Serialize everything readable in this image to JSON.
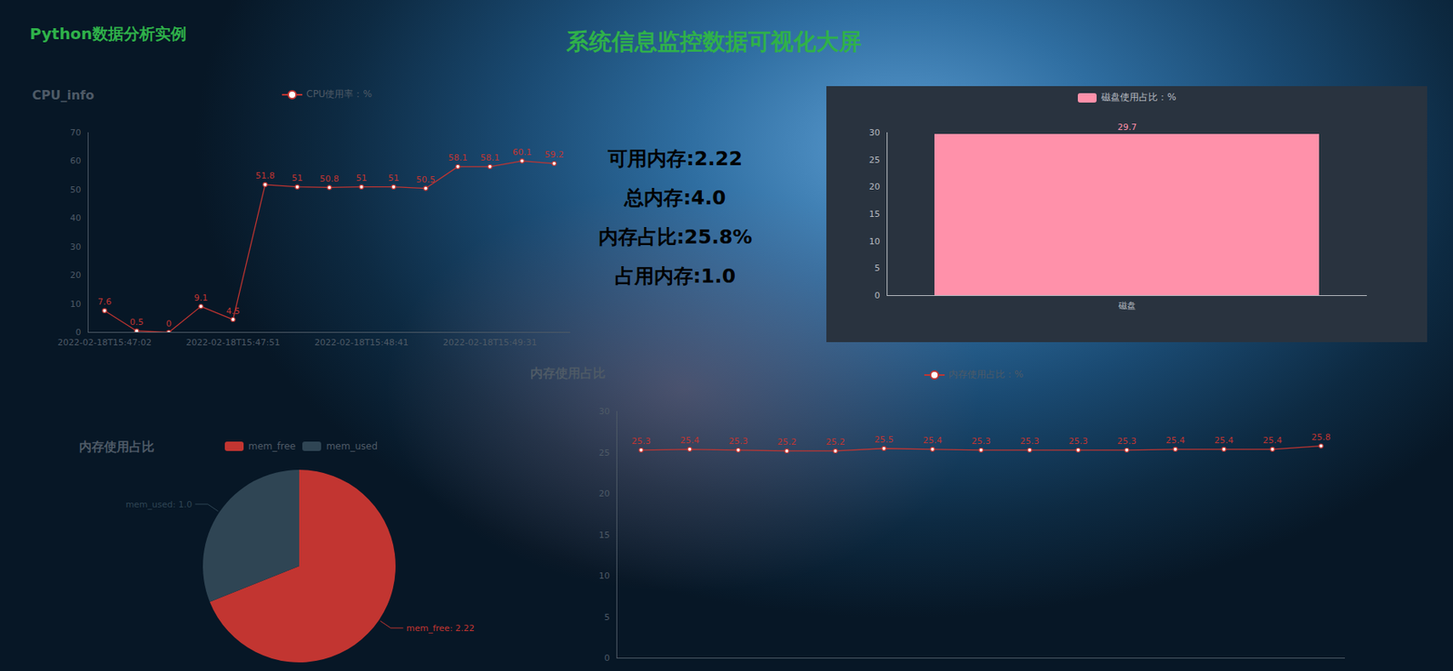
{
  "header": {
    "brand": "Python数据分析实例",
    "title": "系统信息监控数据可视化大屏"
  },
  "memory_summary": [
    "可用内存:2.22",
    "总内存:4.0",
    "内存占比:25.8%",
    "占用内存:1.0"
  ],
  "chart_data": [
    {
      "type": "line",
      "title": "CPU_info",
      "categories": [
        "2022-02-18T15:47:02",
        null,
        null,
        null,
        "2022-02-18T15:47:51",
        null,
        null,
        null,
        "2022-02-18T15:48:41",
        null,
        null,
        null,
        "2022-02-18T15:49:31",
        null,
        null
      ],
      "series": [
        {
          "name": "CPU使用率：%",
          "color": "#c23531",
          "values": [
            7.6,
            0.5,
            0,
            9.1,
            4.5,
            51.8,
            51,
            50.8,
            51,
            51,
            50.5,
            58.1,
            58.1,
            60.1,
            59.2
          ]
        }
      ],
      "ylim": [
        0,
        70
      ],
      "yticks": [
        0,
        10,
        20,
        30,
        40,
        50,
        60,
        70
      ],
      "marker": "circle",
      "data_labels": true,
      "legend": "top"
    },
    {
      "type": "bar",
      "categories": [
        "磁盘"
      ],
      "series": [
        {
          "name": "磁盘使用占比：%",
          "color": "#ff91aa",
          "values": [
            29.7
          ]
        }
      ],
      "ylim": [
        0,
        30
      ],
      "yticks": [
        0,
        5,
        10,
        15,
        20,
        25,
        30
      ],
      "data_labels": true,
      "legend": "top"
    },
    {
      "type": "line",
      "title": "内存使用占比",
      "categories": [
        null,
        null,
        null,
        null,
        null,
        null,
        null,
        null,
        null,
        null,
        null,
        null,
        null,
        null,
        null
      ],
      "series": [
        {
          "name": "内存使用占比：%",
          "color": "#c23531",
          "values": [
            25.3,
            25.4,
            25.3,
            25.2,
            25.2,
            25.5,
            25.4,
            25.3,
            25.3,
            25.3,
            25.3,
            25.4,
            25.4,
            25.4,
            25.8
          ]
        }
      ],
      "ylim": [
        0,
        30
      ],
      "yticks": [
        0,
        5,
        10,
        15,
        20,
        25,
        30
      ],
      "tick_labels": "y",
      "marker": "circle",
      "data_labels": true,
      "legend": "top"
    },
    {
      "type": "pie",
      "title": "内存使用占比",
      "categories": [
        "mem_free",
        "mem_used"
      ],
      "values": [
        2.22,
        1.0
      ],
      "value_labels": [
        "mem_free: 2.22",
        "mem_used: 1.0"
      ],
      "colors": [
        "#c23531",
        "#2f4554"
      ],
      "data_labels": true,
      "legend": "top"
    }
  ]
}
